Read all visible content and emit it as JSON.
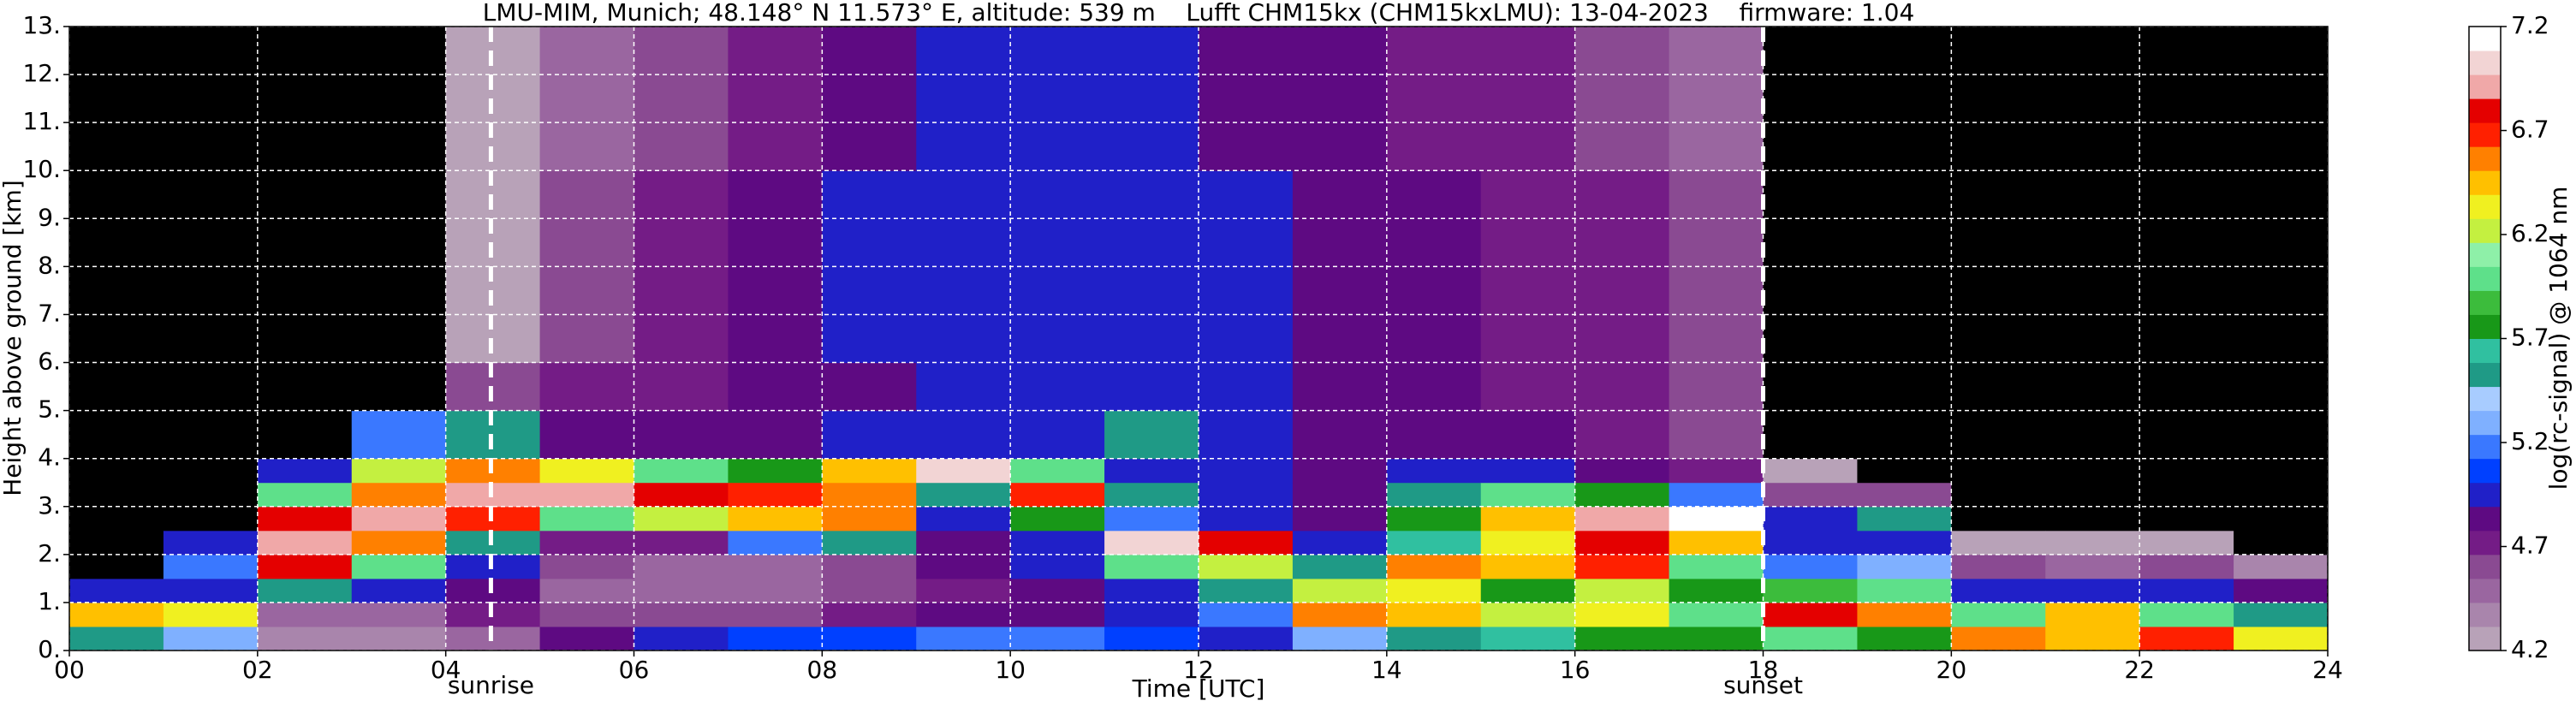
{
  "chart_data": {
    "type": "heatmap",
    "title": "LMU-MIM, Munich; 48.148° N 11.573° E, altitude: 539 m    Lufft CHM15kx (CHM15kxLMU): 13-04-2023    firmware: 1.04",
    "x_label": "Time [UTC]",
    "y_label": "Height above ground [km]",
    "colorbar_label": "log(rc-signal) @ 1064 nm",
    "x": [
      0,
      1,
      2,
      3,
      4,
      5,
      6,
      7,
      8,
      9,
      10,
      11,
      12,
      13,
      14,
      15,
      16,
      17,
      18,
      19,
      20,
      21,
      22,
      23,
      24
    ],
    "y": [
      0,
      0.5,
      1,
      1.5,
      2,
      2.5,
      3,
      3.5,
      4,
      5,
      6,
      8,
      10,
      13
    ],
    "values": [
      [
        5.5,
        6.5,
        5.0,
        4.0,
        4.0,
        4.0,
        4.0,
        4.0,
        4.0,
        4.0,
        4.0,
        4.0,
        4.0
      ],
      [
        5.3,
        6.3,
        5.0,
        5.2,
        5.0,
        4.0,
        4.0,
        4.0,
        4.0,
        4.0,
        4.0,
        4.0,
        4.0
      ],
      [
        4.4,
        4.5,
        5.5,
        6.8,
        6.9,
        6.8,
        6.0,
        5.0,
        4.0,
        4.0,
        4.0,
        4.0,
        4.0
      ],
      [
        4.4,
        4.5,
        5.0,
        6.0,
        6.6,
        6.9,
        6.6,
        6.2,
        5.2,
        4.0,
        4.0,
        4.0,
        4.0
      ],
      [
        4.5,
        4.7,
        4.8,
        5.0,
        5.5,
        6.7,
        6.9,
        6.6,
        5.5,
        4.6,
        4.3,
        4.3,
        4.3
      ],
      [
        4.8,
        4.6,
        4.5,
        4.6,
        4.7,
        6.0,
        6.9,
        6.3,
        4.8,
        4.7,
        4.6,
        4.6,
        4.5
      ],
      [
        5.0,
        4.6,
        4.5,
        4.5,
        4.7,
        6.2,
        6.8,
        6.0,
        4.8,
        4.7,
        4.7,
        4.7,
        4.6
      ],
      [
        5.1,
        4.6,
        4.5,
        4.5,
        5.2,
        6.5,
        6.7,
        5.8,
        4.8,
        4.8,
        4.8,
        4.8,
        4.7
      ],
      [
        5.1,
        4.7,
        4.6,
        4.6,
        5.5,
        6.6,
        6.6,
        6.4,
        4.9,
        4.8,
        4.9,
        4.9,
        4.8
      ],
      [
        5.2,
        4.8,
        4.7,
        4.8,
        4.8,
        5.0,
        5.5,
        7.0,
        4.9,
        4.9,
        4.9,
        5.0,
        4.9
      ],
      [
        5.2,
        4.8,
        4.8,
        5.0,
        5.0,
        5.8,
        6.7,
        6.0,
        5.0,
        4.9,
        5.0,
        5.0,
        4.9
      ],
      [
        5.1,
        4.9,
        5.0,
        6.0,
        7.0,
        5.2,
        5.5,
        5.0,
        5.5,
        5.0,
        5.0,
        5.0,
        4.9
      ],
      [
        5.0,
        5.2,
        5.5,
        6.2,
        6.8,
        5.0,
        4.9,
        4.9,
        4.9,
        4.9,
        4.9,
        4.9,
        4.8
      ],
      [
        5.3,
        6.6,
        6.2,
        5.5,
        5.0,
        4.8,
        4.8,
        4.8,
        4.8,
        4.8,
        4.8,
        4.8,
        4.8
      ],
      [
        5.5,
        6.4,
        6.3,
        6.6,
        5.6,
        5.8,
        5.5,
        4.9,
        4.8,
        4.8,
        4.8,
        4.8,
        4.7
      ],
      [
        5.6,
        6.2,
        5.8,
        6.4,
        6.3,
        6.5,
        6.0,
        5.0,
        4.8,
        4.7,
        4.7,
        4.7,
        4.7
      ],
      [
        5.8,
        6.3,
        6.2,
        6.7,
        6.8,
        6.9,
        5.8,
        4.8,
        4.7,
        4.7,
        4.7,
        4.7,
        4.6
      ],
      [
        5.7,
        6.0,
        5.8,
        6.0,
        6.5,
        7.1,
        5.2,
        4.7,
        4.6,
        4.6,
        4.6,
        4.6,
        4.5
      ],
      [
        6.0,
        6.8,
        5.9,
        5.2,
        5.0,
        4.9,
        4.6,
        4.2,
        4.0,
        4.0,
        4.0,
        4.0,
        4.0
      ],
      [
        5.8,
        6.6,
        6.0,
        5.3,
        5.0,
        5.5,
        4.6,
        4.1,
        4.0,
        4.0,
        4.0,
        4.0,
        4.0
      ],
      [
        6.6,
        6.0,
        5.0,
        4.6,
        4.3,
        4.1,
        4.0,
        4.0,
        4.0,
        4.0,
        4.0,
        4.0,
        4.0
      ],
      [
        6.5,
        6.4,
        5.0,
        4.5,
        4.2,
        4.0,
        4.0,
        4.0,
        4.0,
        4.0,
        4.0,
        4.0,
        4.0
      ],
      [
        6.7,
        6.0,
        5.0,
        4.6,
        4.3,
        4.0,
        4.0,
        4.0,
        4.0,
        4.0,
        4.0,
        4.0,
        4.0
      ],
      [
        6.3,
        5.5,
        4.8,
        4.4,
        4.1,
        4.0,
        4.0,
        4.0,
        4.0,
        4.0,
        4.0,
        4.0,
        4.0
      ]
    ],
    "xlim": [
      0,
      24
    ],
    "xticks": [
      {
        "value": 0,
        "label": "00"
      },
      {
        "value": 2,
        "label": "02"
      },
      {
        "value": 4,
        "label": "04"
      },
      {
        "value": 6,
        "label": "06"
      },
      {
        "value": 8,
        "label": "08"
      },
      10,
      12,
      14,
      16,
      18,
      20,
      22,
      24
    ],
    "ylim": [
      0,
      13
    ],
    "yticks": [
      {
        "value": 0,
        "label": "0."
      },
      {
        "value": 1,
        "label": "1."
      },
      {
        "value": 2,
        "label": "2."
      },
      {
        "value": 3,
        "label": "3."
      },
      {
        "value": 4,
        "label": "4."
      },
      {
        "value": 5,
        "label": "5."
      },
      {
        "value": 6,
        "label": "6."
      },
      {
        "value": 7,
        "label": "7."
      },
      {
        "value": 8,
        "label": "8."
      },
      {
        "value": 9,
        "label": "9."
      },
      {
        "value": 10,
        "label": "10."
      },
      {
        "value": 11,
        "label": "11."
      },
      {
        "value": 12,
        "label": "12."
      },
      {
        "value": 13,
        "label": "13."
      }
    ],
    "clim": [
      4.2,
      7.2
    ],
    "cticks": [
      4.2,
      4.7,
      5.2,
      5.7,
      6.2,
      6.7,
      7.2
    ],
    "colormap": [
      "#b8a2b8",
      "#a985ac",
      "#9a66a0",
      "#8a4a92",
      "#741c86",
      "#5e0a82",
      "#2020c8",
      "#0040ff",
      "#3a78ff",
      "#7fb0ff",
      "#a8ccff",
      "#1f9a86",
      "#30c0a0",
      "#189818",
      "#3cbc3c",
      "#5ee08a",
      "#8ef0a8",
      "#c4f040",
      "#f0f020",
      "#ffc000",
      "#ff8000",
      "#ff2000",
      "#e40000",
      "#f0a8a8",
      "#f2d4d4",
      "#ffffff"
    ],
    "under_color": "#000000",
    "grid": true,
    "annotations": [
      {
        "x": 4.48,
        "label": "sunrise"
      },
      {
        "x": 18.0,
        "label": "sunset"
      }
    ]
  }
}
